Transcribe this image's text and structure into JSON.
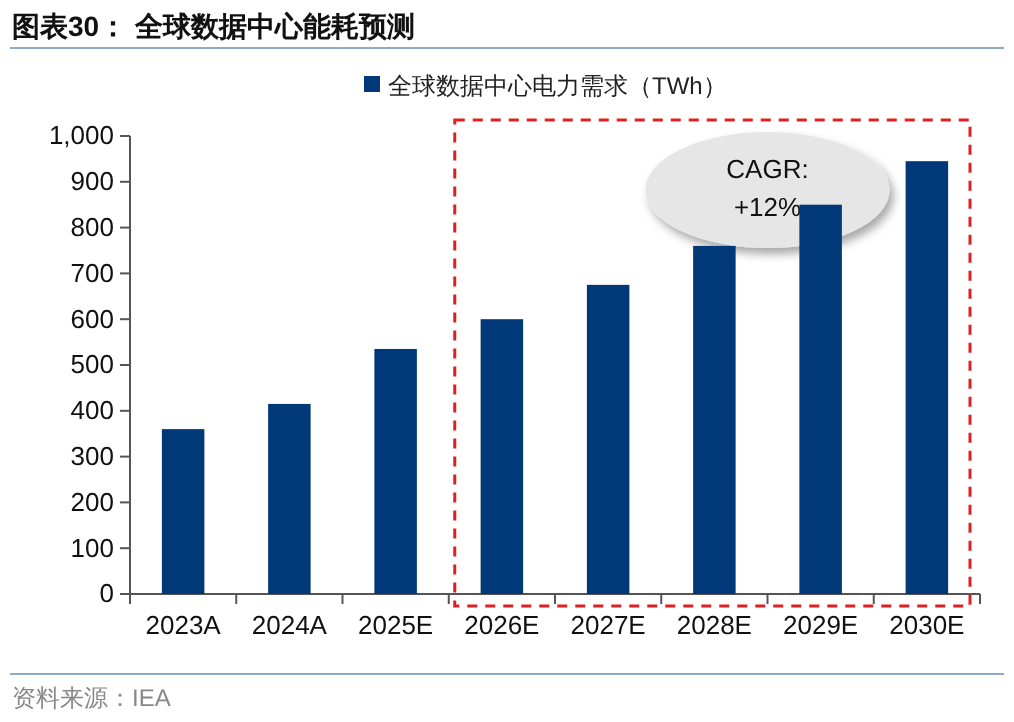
{
  "chart_data": {
    "type": "bar",
    "title": "图表30：  全球数据中心能耗预测",
    "categories": [
      "2023A",
      "2024A",
      "2025E",
      "2026E",
      "2027E",
      "2028E",
      "2029E",
      "2030E"
    ],
    "series": [
      {
        "name": "全球数据中心电力需求（TWh）",
        "color": "#003878",
        "values": [
          360,
          415,
          535,
          600,
          675,
          760,
          850,
          945
        ]
      }
    ],
    "ylim": [
      0,
      1000
    ],
    "yticks": [
      0,
      100,
      200,
      300,
      400,
      500,
      600,
      700,
      800,
      900,
      {
        "value": 1000,
        "label": "1,000"
      }
    ],
    "grid": false,
    "legend": "top",
    "annotations": [
      "CAGR: +12%",
      "资料来源：IEA"
    ]
  }
}
